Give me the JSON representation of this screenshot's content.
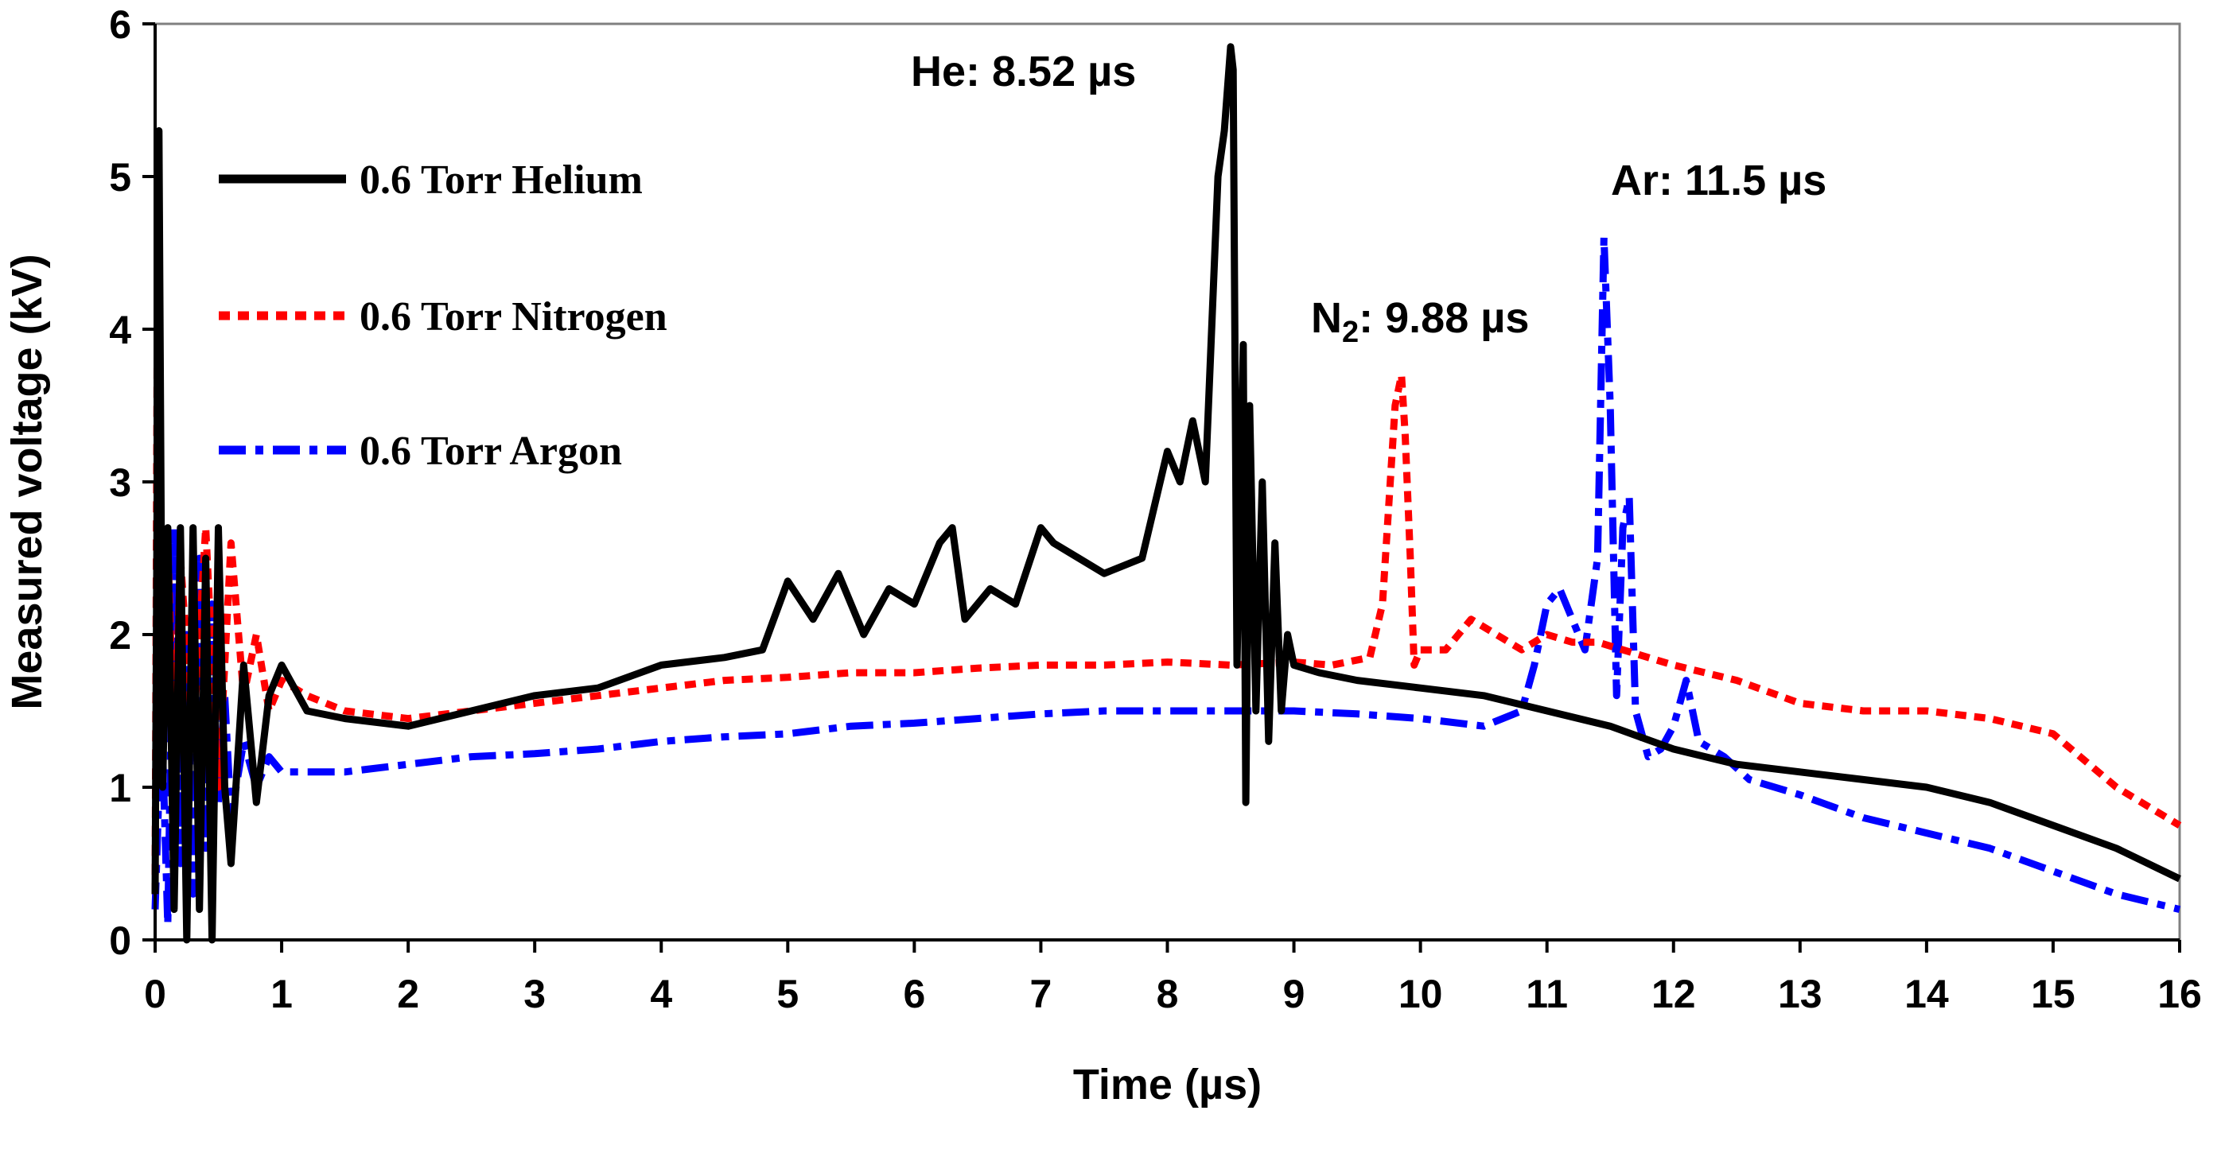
{
  "chart_data": {
    "type": "line",
    "title": "",
    "xlabel": "Time (µs)",
    "ylabel": "Measured voltage (kV)",
    "xlim": [
      0,
      16
    ],
    "ylim": [
      0,
      6
    ],
    "xticks": [
      "0",
      "1",
      "2",
      "3",
      "4",
      "5",
      "6",
      "7",
      "8",
      "9",
      "10",
      "11",
      "12",
      "13",
      "14",
      "15",
      "16"
    ],
    "yticks": [
      "0",
      "1",
      "2",
      "3",
      "4",
      "5",
      "6"
    ],
    "legend_position": "top-left",
    "grid": false,
    "series": [
      {
        "name": "0.6 Torr Helium",
        "color": "#000000",
        "style": "solid",
        "x": [
          0,
          0.03,
          0.06,
          0.1,
          0.15,
          0.2,
          0.25,
          0.3,
          0.35,
          0.4,
          0.45,
          0.5,
          0.55,
          0.6,
          0.7,
          0.8,
          0.9,
          1.0,
          1.2,
          1.5,
          2.0,
          2.5,
          3.0,
          3.5,
          4.0,
          4.5,
          4.8,
          5.0,
          5.2,
          5.4,
          5.6,
          5.8,
          6.0,
          6.2,
          6.3,
          6.4,
          6.6,
          6.8,
          7.0,
          7.1,
          7.3,
          7.5,
          7.8,
          8.0,
          8.1,
          8.2,
          8.3,
          8.4,
          8.45,
          8.5,
          8.52,
          8.55,
          8.6,
          8.62,
          8.65,
          8.7,
          8.75,
          8.8,
          8.85,
          8.9,
          8.95,
          9.0,
          9.2,
          9.5,
          10.0,
          10.5,
          11.0,
          11.5,
          12.0,
          12.5,
          13.0,
          13.5,
          14.0,
          14.5,
          15.0,
          15.5,
          16.0
        ],
        "values": [
          0.3,
          5.3,
          1.0,
          2.7,
          0.2,
          2.7,
          0.0,
          2.7,
          0.2,
          2.5,
          0.0,
          2.7,
          1.0,
          0.5,
          1.8,
          0.9,
          1.6,
          1.8,
          1.5,
          1.45,
          1.4,
          1.5,
          1.6,
          1.65,
          1.8,
          1.85,
          1.9,
          2.35,
          2.1,
          2.4,
          2.0,
          2.3,
          2.2,
          2.6,
          2.7,
          2.1,
          2.3,
          2.2,
          2.7,
          2.6,
          2.5,
          2.4,
          2.5,
          3.2,
          3.0,
          3.4,
          3.0,
          5.0,
          5.3,
          5.85,
          5.7,
          1.8,
          3.9,
          0.9,
          3.5,
          1.5,
          3.0,
          1.3,
          2.6,
          1.5,
          2.0,
          1.8,
          1.75,
          1.7,
          1.65,
          1.6,
          1.5,
          1.4,
          1.25,
          1.15,
          1.1,
          1.05,
          1.0,
          0.9,
          0.75,
          0.6,
          0.4
        ]
      },
      {
        "name": "0.6 Torr Nitrogen",
        "color": "#ff0000",
        "style": "dotted",
        "x": [
          0,
          0.02,
          0.05,
          0.1,
          0.15,
          0.2,
          0.3,
          0.4,
          0.5,
          0.6,
          0.7,
          0.8,
          0.9,
          1.0,
          1.2,
          1.5,
          2.0,
          2.5,
          3.0,
          3.5,
          4.0,
          4.5,
          5.0,
          5.5,
          6.0,
          6.5,
          7.0,
          7.5,
          8.0,
          8.5,
          9.0,
          9.3,
          9.6,
          9.7,
          9.8,
          9.85,
          9.88,
          9.92,
          9.95,
          10.0,
          10.2,
          10.4,
          10.6,
          10.8,
          11.0,
          11.2,
          11.4,
          11.6,
          11.8,
          12.0,
          12.5,
          13.0,
          13.5,
          14.0,
          14.5,
          15.0,
          15.5,
          16.0
        ],
        "values": [
          0.3,
          4.8,
          1.8,
          2.6,
          1.2,
          2.5,
          1.3,
          2.7,
          1.0,
          2.6,
          1.6,
          2.0,
          1.5,
          1.7,
          1.6,
          1.5,
          1.45,
          1.5,
          1.55,
          1.6,
          1.65,
          1.7,
          1.72,
          1.75,
          1.75,
          1.78,
          1.8,
          1.8,
          1.82,
          1.8,
          1.82,
          1.8,
          1.85,
          2.2,
          3.5,
          3.7,
          3.3,
          2.5,
          1.8,
          1.9,
          1.9,
          2.1,
          2.0,
          1.9,
          2.0,
          1.95,
          1.95,
          1.9,
          1.85,
          1.8,
          1.7,
          1.55,
          1.5,
          1.5,
          1.45,
          1.35,
          1.0,
          0.75
        ]
      },
      {
        "name": "0.6 Torr Argon",
        "color": "#0000ff",
        "style": "dashdot",
        "x": [
          0,
          0.05,
          0.1,
          0.15,
          0.2,
          0.25,
          0.3,
          0.35,
          0.4,
          0.45,
          0.5,
          0.55,
          0.6,
          0.7,
          0.8,
          0.9,
          1.0,
          1.5,
          2.0,
          2.5,
          3.0,
          3.5,
          4.0,
          4.5,
          5.0,
          5.5,
          6.0,
          6.5,
          7.0,
          7.5,
          8.0,
          8.5,
          9.0,
          9.5,
          10.0,
          10.5,
          10.8,
          10.9,
          11.0,
          11.1,
          11.2,
          11.3,
          11.4,
          11.45,
          11.5,
          11.55,
          11.6,
          11.65,
          11.7,
          11.8,
          11.9,
          12.0,
          12.1,
          12.2,
          12.4,
          12.6,
          13.0,
          13.5,
          14.0,
          14.5,
          15.0,
          15.5,
          16.0
        ],
        "values": [
          0.2,
          1.5,
          0.1,
          2.7,
          0.5,
          2.0,
          0.3,
          2.5,
          0.6,
          2.2,
          0.9,
          1.6,
          0.8,
          1.3,
          1.0,
          1.2,
          1.1,
          1.1,
          1.15,
          1.2,
          1.22,
          1.25,
          1.3,
          1.33,
          1.35,
          1.4,
          1.42,
          1.45,
          1.48,
          1.5,
          1.5,
          1.5,
          1.5,
          1.48,
          1.45,
          1.4,
          1.5,
          1.8,
          2.2,
          2.3,
          2.1,
          1.9,
          2.5,
          4.6,
          3.5,
          1.6,
          2.7,
          2.9,
          1.5,
          1.2,
          1.25,
          1.4,
          1.7,
          1.3,
          1.2,
          1.05,
          0.95,
          0.8,
          0.7,
          0.6,
          0.45,
          0.3,
          0.2
        ]
      }
    ],
    "annotations": [
      {
        "id": "he",
        "label": "He: 8.52 µs",
        "x": 8.52,
        "y": 5.85
      },
      {
        "id": "n2_prefix",
        "label": "N",
        "x": 9.88,
        "y": 3.7
      },
      {
        "id": "n2_sub",
        "label": "2",
        "x": 9.88,
        "y": 3.7
      },
      {
        "id": "n2_suffix",
        "label": ": 9.88 µs",
        "x": 9.88,
        "y": 3.7
      },
      {
        "id": "ar",
        "label": "Ar: 11.5 µs",
        "x": 11.5,
        "y": 4.6
      }
    ]
  }
}
